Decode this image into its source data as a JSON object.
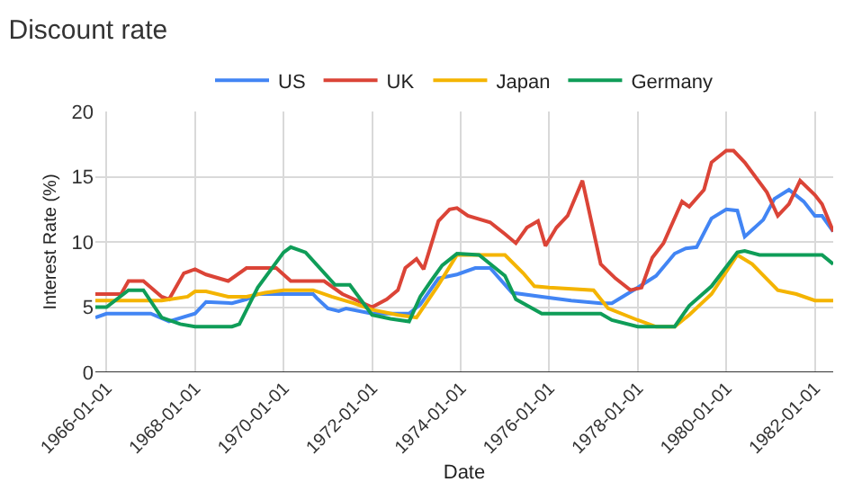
{
  "chart_data": {
    "type": "line",
    "title": "Discount rate",
    "xlabel": "Date",
    "ylabel": "Interest Rate (%)",
    "xlim": [
      "1965-10",
      "1982-06"
    ],
    "xticks": [
      "1966-01-01",
      "1968-01-01",
      "1970-01-01",
      "1972-01-01",
      "1974-01-01",
      "1976-01-01",
      "1978-01-01",
      "1980-01-01",
      "1982-01-01"
    ],
    "ylim": [
      0,
      20
    ],
    "yticks": [
      0,
      5,
      10,
      15,
      20
    ],
    "grid": true,
    "legend": "top",
    "marker": "none",
    "line_style": "solid",
    "series": [
      {
        "name": "US",
        "color": "#4285f4",
        "x": [
          "1965-10",
          "1966-01",
          "1967-01",
          "1967-06",
          "1968-01",
          "1968-04",
          "1968-11",
          "1969-03",
          "1969-06",
          "1970-01",
          "1970-09",
          "1970-10",
          "1971-01",
          "1971-04",
          "1971-06",
          "1972-01",
          "1972-11",
          "1973-02",
          "1973-07",
          "1973-12",
          "1974-05",
          "1974-09",
          "1975-03",
          "1975-11",
          "1976-07",
          "1977-03",
          "1977-06",
          "1978-01",
          "1978-06",
          "1978-11",
          "1979-02",
          "1979-05",
          "1979-09",
          "1980-01",
          "1980-04",
          "1980-06",
          "1980-11",
          "1981-02",
          "1981-06",
          "1981-10",
          "1982-01",
          "1982-03",
          "1982-06"
        ],
        "values": [
          4.2,
          4.5,
          4.5,
          3.9,
          4.5,
          5.4,
          5.3,
          5.6,
          6.0,
          6.0,
          6.0,
          5.7,
          4.9,
          4.7,
          4.9,
          4.5,
          4.5,
          5.2,
          7.2,
          7.5,
          8.0,
          8.0,
          6.1,
          5.8,
          5.5,
          5.3,
          5.3,
          6.5,
          7.4,
          9.1,
          9.5,
          9.6,
          11.8,
          12.5,
          12.4,
          10.4,
          11.7,
          13.3,
          14.0,
          13.1,
          12.0,
          12.0,
          10.8
        ]
      },
      {
        "name": "UK",
        "color": "#db4437",
        "x": [
          "1965-10",
          "1966-05",
          "1966-07",
          "1966-11",
          "1967-04",
          "1967-06",
          "1967-10",
          "1968-01",
          "1968-04",
          "1968-10",
          "1969-03",
          "1969-11",
          "1970-03",
          "1970-12",
          "1971-05",
          "1972-01",
          "1972-05",
          "1972-08",
          "1972-10",
          "1973-01",
          "1973-03",
          "1973-07",
          "1973-10",
          "1973-12",
          "1974-03",
          "1974-09",
          "1975-01",
          "1975-04",
          "1975-07",
          "1975-10",
          "1975-12",
          "1976-03",
          "1976-06",
          "1976-10",
          "1977-03",
          "1977-07",
          "1977-11",
          "1978-02",
          "1978-05",
          "1978-08",
          "1979-01",
          "1979-03",
          "1979-07",
          "1979-09",
          "1980-01",
          "1980-03",
          "1980-06",
          "1980-12",
          "1981-03",
          "1981-06",
          "1981-09",
          "1982-01",
          "1982-03",
          "1982-06"
        ],
        "values": [
          6.0,
          6.0,
          7.0,
          7.0,
          5.8,
          5.6,
          7.6,
          7.9,
          7.5,
          7.0,
          8.0,
          8.0,
          7.0,
          7.0,
          6.0,
          5.0,
          5.6,
          6.3,
          8.0,
          8.7,
          7.9,
          11.6,
          12.5,
          12.6,
          12.0,
          11.5,
          10.6,
          9.9,
          11.1,
          11.6,
          9.7,
          11.1,
          12.0,
          14.7,
          8.3,
          7.2,
          6.3,
          6.5,
          8.8,
          9.9,
          13.1,
          12.7,
          14.0,
          16.1,
          17.0,
          17.0,
          16.1,
          13.8,
          12.0,
          12.9,
          14.7,
          13.6,
          12.9,
          10.8
        ]
      },
      {
        "name": "Japan",
        "color": "#f4b400",
        "x": [
          "1965-10",
          "1966-08",
          "1967-04",
          "1967-11",
          "1968-01",
          "1968-04",
          "1968-10",
          "1969-03",
          "1969-08",
          "1970-01",
          "1970-09",
          "1971-02",
          "1971-08",
          "1972-01",
          "1972-08",
          "1973-01",
          "1973-07",
          "1973-12",
          "1975-01",
          "1975-06",
          "1975-09",
          "1976-01",
          "1977-01",
          "1977-05",
          "1978-01",
          "1978-06",
          "1978-11",
          "1979-03",
          "1979-09",
          "1980-04",
          "1980-08",
          "1981-03",
          "1981-08",
          "1982-01",
          "1982-06"
        ],
        "values": [
          5.5,
          5.5,
          5.5,
          5.8,
          6.2,
          6.2,
          5.8,
          5.8,
          6.1,
          6.3,
          6.3,
          5.8,
          5.3,
          4.8,
          4.4,
          4.2,
          6.7,
          9.0,
          9.0,
          7.6,
          6.6,
          6.5,
          6.3,
          4.9,
          4.0,
          3.5,
          3.5,
          4.4,
          6.0,
          9.0,
          8.3,
          6.3,
          6.0,
          5.5,
          5.5
        ]
      },
      {
        "name": "Germany",
        "color": "#0f9d58",
        "x": [
          "1965-10",
          "1966-01",
          "1966-07",
          "1966-11",
          "1967-04",
          "1967-09",
          "1968-01",
          "1968-11",
          "1969-01",
          "1969-06",
          "1970-01",
          "1970-03",
          "1970-07",
          "1971-03",
          "1971-07",
          "1972-01",
          "1972-06",
          "1972-11",
          "1973-02",
          "1973-05",
          "1973-08",
          "1973-12",
          "1974-06",
          "1975-01",
          "1975-04",
          "1975-11",
          "1977-03",
          "1977-06",
          "1978-01",
          "1978-11",
          "1979-03",
          "1979-09",
          "1980-04",
          "1980-06",
          "1980-10",
          "1982-03",
          "1982-06"
        ],
        "values": [
          5.0,
          5.0,
          6.3,
          6.3,
          4.2,
          3.7,
          3.5,
          3.5,
          3.7,
          6.5,
          9.2,
          9.6,
          9.2,
          6.7,
          6.7,
          4.4,
          4.1,
          3.9,
          5.8,
          7.0,
          8.2,
          9.1,
          9.0,
          7.4,
          5.6,
          4.5,
          4.5,
          4.0,
          3.5,
          3.5,
          5.1,
          6.6,
          9.2,
          9.3,
          9.0,
          9.0,
          8.3
        ]
      }
    ]
  }
}
